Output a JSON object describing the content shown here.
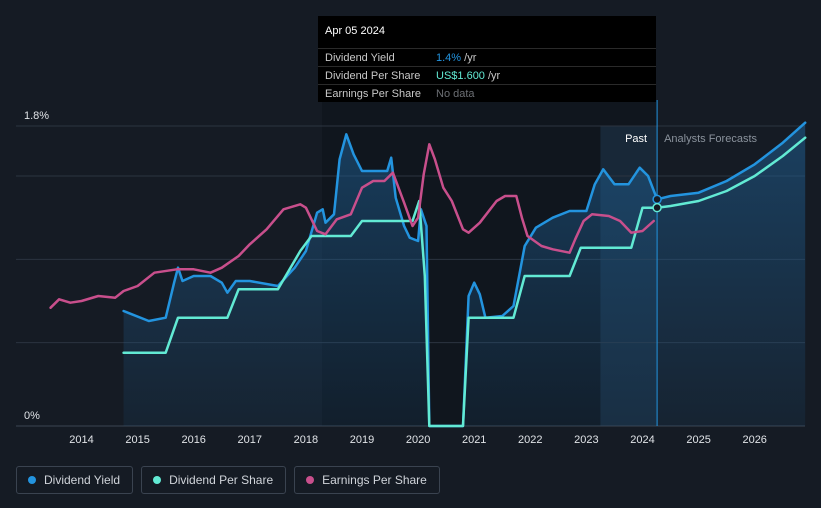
{
  "tooltip": {
    "date": "Apr 05 2024",
    "rows": [
      {
        "label": "Dividend Yield",
        "value": "1.4%",
        "unit": " /yr",
        "color": "#2394df"
      },
      {
        "label": "Dividend Per Share",
        "value": "US$1.600",
        "unit": " /yr",
        "color": "#62ead4"
      },
      {
        "label": "Earnings Per Share",
        "value": "No data",
        "unit": "",
        "color": "#6c6f74"
      }
    ]
  },
  "legend": [
    {
      "label": "Dividend Yield",
      "color": "#2394df"
    },
    {
      "label": "Dividend Per Share",
      "color": "#62ead4"
    },
    {
      "label": "Earnings Per Share",
      "color": "#c84f8c"
    }
  ],
  "chart_data": {
    "type": "line",
    "y_tick_labels": [
      "1.8%",
      "0%"
    ],
    "ylim": [
      0,
      1.8
    ],
    "xlim": [
      2013.4,
      2026.9
    ],
    "x_ticks": [
      2014,
      2015,
      2016,
      2017,
      2018,
      2019,
      2020,
      2021,
      2022,
      2023,
      2024,
      2025,
      2026
    ],
    "past_label": "Past",
    "forecast_label": "Analysts Forecasts",
    "forecast_region_start": 2023.25,
    "today": 2024.26,
    "series": [
      {
        "name": "Dividend Yield",
        "color": "#2394df",
        "area": true,
        "points": [
          [
            2014.75,
            0.69
          ],
          [
            2015.2,
            0.63
          ],
          [
            2015.5,
            0.65
          ],
          [
            2015.65,
            0.86
          ],
          [
            2015.72,
            0.95
          ],
          [
            2015.8,
            0.87
          ],
          [
            2016.0,
            0.9
          ],
          [
            2016.3,
            0.9
          ],
          [
            2016.5,
            0.86
          ],
          [
            2016.6,
            0.8
          ],
          [
            2016.75,
            0.87
          ],
          [
            2017.0,
            0.87
          ],
          [
            2017.5,
            0.84
          ],
          [
            2017.8,
            0.95
          ],
          [
            2018.0,
            1.05
          ],
          [
            2018.2,
            1.28
          ],
          [
            2018.3,
            1.3
          ],
          [
            2018.35,
            1.22
          ],
          [
            2018.5,
            1.27
          ],
          [
            2018.6,
            1.6
          ],
          [
            2018.72,
            1.75
          ],
          [
            2018.85,
            1.63
          ],
          [
            2019.0,
            1.53
          ],
          [
            2019.2,
            1.53
          ],
          [
            2019.45,
            1.53
          ],
          [
            2019.52,
            1.61
          ],
          [
            2019.6,
            1.37
          ],
          [
            2019.75,
            1.2
          ],
          [
            2019.85,
            1.13
          ],
          [
            2020.0,
            1.11
          ],
          [
            2020.05,
            1.3
          ],
          [
            2020.15,
            1.2
          ],
          [
            2020.2,
            0.0
          ],
          [
            2020.8,
            0.0
          ],
          [
            2020.9,
            0.78
          ],
          [
            2021.0,
            0.86
          ],
          [
            2021.1,
            0.79
          ],
          [
            2021.2,
            0.65
          ],
          [
            2021.5,
            0.66
          ],
          [
            2021.7,
            0.72
          ],
          [
            2021.9,
            1.08
          ],
          [
            2022.1,
            1.19
          ],
          [
            2022.4,
            1.25
          ],
          [
            2022.7,
            1.29
          ],
          [
            2023.0,
            1.29
          ],
          [
            2023.15,
            1.45
          ],
          [
            2023.3,
            1.54
          ],
          [
            2023.5,
            1.45
          ],
          [
            2023.75,
            1.45
          ],
          [
            2023.95,
            1.55
          ],
          [
            2024.1,
            1.5
          ],
          [
            2024.26,
            1.36
          ],
          [
            2024.5,
            1.38
          ],
          [
            2025.0,
            1.4
          ],
          [
            2025.5,
            1.47
          ],
          [
            2026.0,
            1.57
          ],
          [
            2026.5,
            1.7
          ],
          [
            2026.9,
            1.82
          ]
        ]
      },
      {
        "name": "Dividend Per Share",
        "color": "#62ead4",
        "points": [
          [
            2014.75,
            0.44
          ],
          [
            2015.5,
            0.44
          ],
          [
            2015.72,
            0.65
          ],
          [
            2016.6,
            0.65
          ],
          [
            2016.8,
            0.82
          ],
          [
            2017.5,
            0.82
          ],
          [
            2017.9,
            1.05
          ],
          [
            2018.1,
            1.14
          ],
          [
            2018.8,
            1.14
          ],
          [
            2019.0,
            1.23
          ],
          [
            2019.9,
            1.23
          ],
          [
            2020.02,
            1.35
          ],
          [
            2020.12,
            0.9
          ],
          [
            2020.2,
            0.0
          ],
          [
            2020.8,
            0.0
          ],
          [
            2020.9,
            0.65
          ],
          [
            2021.7,
            0.65
          ],
          [
            2021.9,
            0.9
          ],
          [
            2022.7,
            0.9
          ],
          [
            2022.9,
            1.07
          ],
          [
            2023.8,
            1.07
          ],
          [
            2024.0,
            1.31
          ],
          [
            2024.26,
            1.31
          ],
          [
            2024.5,
            1.32
          ],
          [
            2025.0,
            1.35
          ],
          [
            2025.5,
            1.41
          ],
          [
            2026.0,
            1.5
          ],
          [
            2026.5,
            1.62
          ],
          [
            2026.9,
            1.73
          ]
        ]
      },
      {
        "name": "Earnings Per Share",
        "color": "#c84f8c",
        "points": [
          [
            2013.45,
            0.71
          ],
          [
            2013.6,
            0.76
          ],
          [
            2013.8,
            0.74
          ],
          [
            2014.0,
            0.75
          ],
          [
            2014.3,
            0.78
          ],
          [
            2014.6,
            0.77
          ],
          [
            2014.75,
            0.81
          ],
          [
            2015.0,
            0.84
          ],
          [
            2015.3,
            0.92
          ],
          [
            2015.7,
            0.94
          ],
          [
            2016.0,
            0.94
          ],
          [
            2016.3,
            0.92
          ],
          [
            2016.5,
            0.95
          ],
          [
            2016.8,
            1.02
          ],
          [
            2017.0,
            1.09
          ],
          [
            2017.3,
            1.18
          ],
          [
            2017.6,
            1.3
          ],
          [
            2017.9,
            1.33
          ],
          [
            2018.0,
            1.31
          ],
          [
            2018.2,
            1.17
          ],
          [
            2018.35,
            1.15
          ],
          [
            2018.55,
            1.24
          ],
          [
            2018.8,
            1.27
          ],
          [
            2019.0,
            1.43
          ],
          [
            2019.2,
            1.47
          ],
          [
            2019.4,
            1.47
          ],
          [
            2019.55,
            1.52
          ],
          [
            2019.75,
            1.34
          ],
          [
            2019.9,
            1.2
          ],
          [
            2020.0,
            1.25
          ],
          [
            2020.1,
            1.51
          ],
          [
            2020.2,
            1.69
          ],
          [
            2020.3,
            1.6
          ],
          [
            2020.45,
            1.43
          ],
          [
            2020.6,
            1.35
          ],
          [
            2020.8,
            1.18
          ],
          [
            2020.9,
            1.16
          ],
          [
            2021.1,
            1.22
          ],
          [
            2021.4,
            1.35
          ],
          [
            2021.55,
            1.38
          ],
          [
            2021.75,
            1.38
          ],
          [
            2021.85,
            1.25
          ],
          [
            2021.95,
            1.14
          ],
          [
            2022.2,
            1.08
          ],
          [
            2022.4,
            1.06
          ],
          [
            2022.7,
            1.04
          ],
          [
            2022.8,
            1.12
          ],
          [
            2022.95,
            1.23
          ],
          [
            2023.1,
            1.27
          ],
          [
            2023.4,
            1.26
          ],
          [
            2023.6,
            1.23
          ],
          [
            2023.8,
            1.16
          ],
          [
            2024.0,
            1.17
          ],
          [
            2024.2,
            1.23
          ]
        ]
      }
    ]
  }
}
